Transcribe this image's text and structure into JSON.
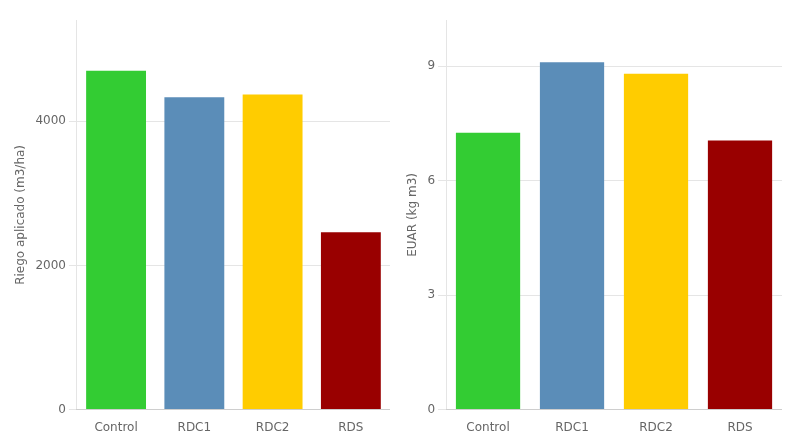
{
  "chart_data": [
    {
      "type": "bar",
      "categories": [
        "Control",
        "RDC1",
        "RDC2",
        "RDS"
      ],
      "values": [
        4700,
        4330,
        4370,
        2460
      ],
      "colors": [
        "#33cc33",
        "#5b8db8",
        "#ffcc00",
        "#990000"
      ],
      "ylabel": "Riego aplicado (m3/ha)",
      "ylim": [
        0,
        5400
      ],
      "yticks": [
        0,
        2000,
        4000
      ],
      "grid": true
    },
    {
      "type": "bar",
      "categories": [
        "Control",
        "RDC1",
        "RDC2",
        "RDS"
      ],
      "values": [
        7.25,
        9.1,
        8.8,
        7.05
      ],
      "colors": [
        "#33cc33",
        "#5b8db8",
        "#ffcc00",
        "#990000"
      ],
      "ylabel": "EUAR (kg m3)",
      "ylim": [
        0,
        10.2
      ],
      "yticks": [
        0,
        3,
        6,
        9
      ],
      "grid": true
    }
  ]
}
